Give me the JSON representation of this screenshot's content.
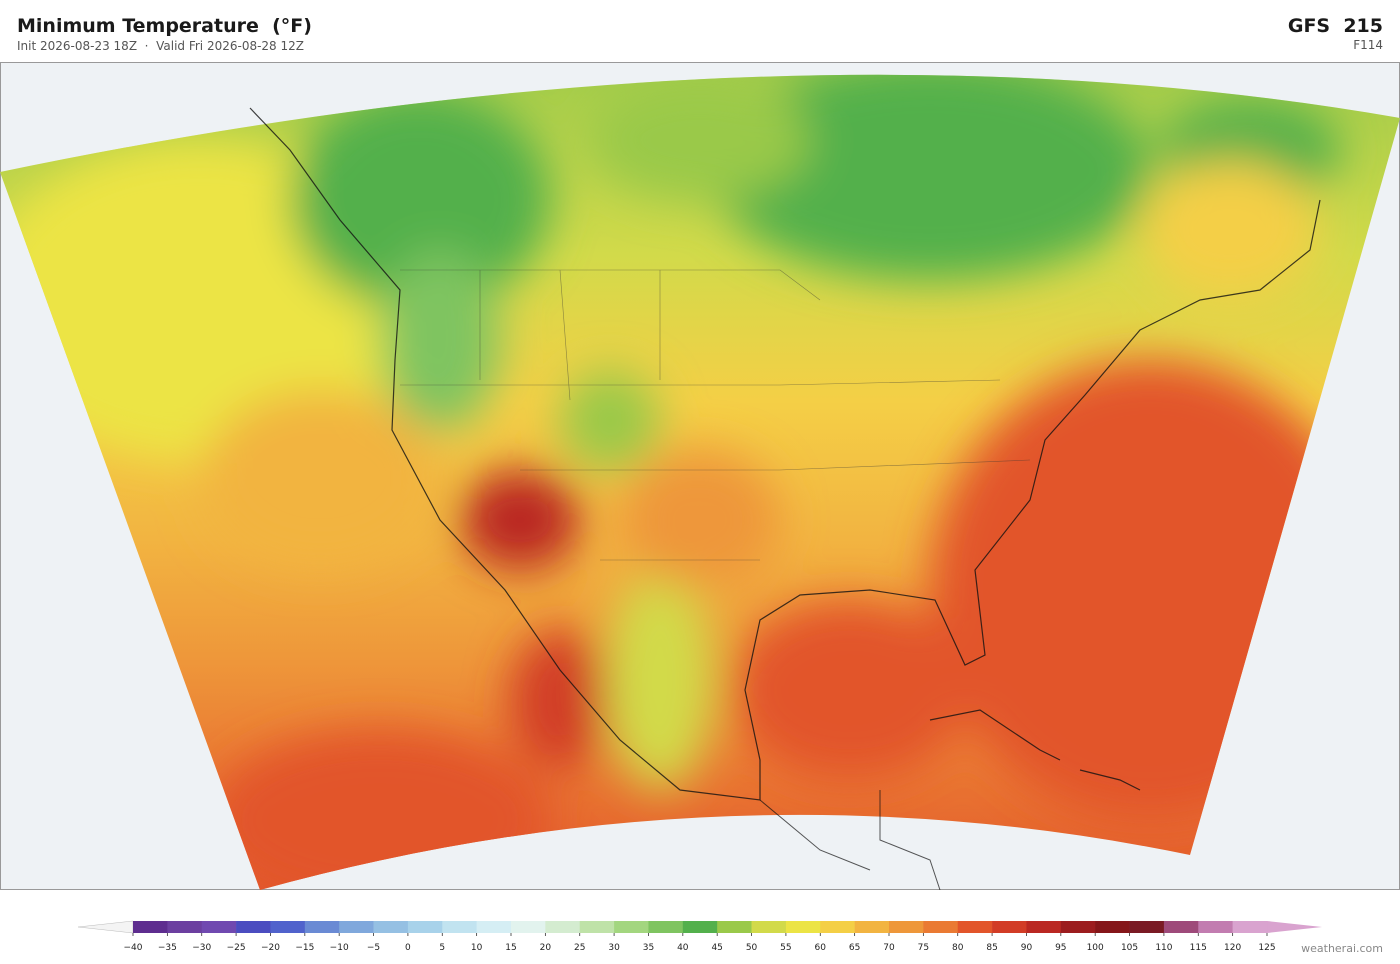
{
  "header": {
    "title": "Minimum Temperature  (°F)",
    "subtitle": "Init 2026-08-23 18Z  ·  Valid Fri 2026-08-28 12Z",
    "model": "GFS  215",
    "forecast_hour": "F114"
  },
  "colorbar": {
    "ticks": [
      {
        "value": -40,
        "label": "−40"
      },
      {
        "value": -35,
        "label": "−35"
      },
      {
        "value": -30,
        "label": "−30"
      },
      {
        "value": -25,
        "label": "−25"
      },
      {
        "value": -20,
        "label": "−20"
      },
      {
        "value": -15,
        "label": "−15"
      },
      {
        "value": -10,
        "label": "−10"
      },
      {
        "value": -5,
        "label": "−5"
      },
      0,
      5,
      10,
      15,
      20,
      25,
      30,
      35,
      40,
      45,
      50,
      55,
      60,
      65,
      70,
      75,
      80,
      85,
      90,
      95,
      100,
      105,
      110,
      115,
      120,
      125
    ],
    "colors": [
      "#5e2d8f",
      "#6c3fa0",
      "#7049b0",
      "#4b4dc0",
      "#5062cc",
      "#6a8ad4",
      "#80a8dc",
      "#95c0e3",
      "#a8d2ea",
      "#c1e3f0",
      "#d5eef4",
      "#e2f3ee",
      "#d4ecd0",
      "#bfe2a8",
      "#a3d67f",
      "#7fc460",
      "#53b04c",
      "#9ac94a",
      "#d2da4a",
      "#ece445",
      "#f4cf46",
      "#f2b441",
      "#ee973a",
      "#ea7a33",
      "#e2552a",
      "#d23c26",
      "#ba2822",
      "#9c1c1e",
      "#851619",
      "#7a1a24",
      "#9e4a7a",
      "#c27cb0",
      "#d9a3cf"
    ],
    "under_color": "#f4f4f4",
    "over_color": "#d9a3cf"
  },
  "watermark": "weatherai.com"
}
